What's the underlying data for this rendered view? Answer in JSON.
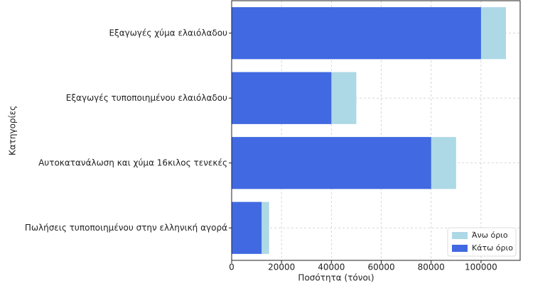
{
  "chart_data": {
    "type": "hbar-overlap",
    "categories": [
      "Εξαγωγές χύμα ελαιόλαδου",
      "Εξαγωγές τυποποιημένου ελαιόλαδου",
      "Αυτοκατανάλωση και χύμα 16κιλος τενεκές",
      "Πωλήσεις τυποποιημένου στην ελληνική αγορά"
    ],
    "series": [
      {
        "name": "Άνω όριο",
        "color": "#add8e6",
        "values": [
          110000,
          50000,
          90000,
          15000
        ]
      },
      {
        "name": "Κάτω όριο",
        "color": "#4169e1",
        "values": [
          100000,
          40000,
          80000,
          12000
        ]
      }
    ],
    "x_label": "Ποσότητα (τόνοι)",
    "y_label": "Κατηγορίες",
    "xlim": [
      0,
      115700
    ],
    "xticks": [
      0,
      20000,
      40000,
      60000,
      80000,
      100000
    ],
    "grid": true,
    "legend": "lower right"
  }
}
